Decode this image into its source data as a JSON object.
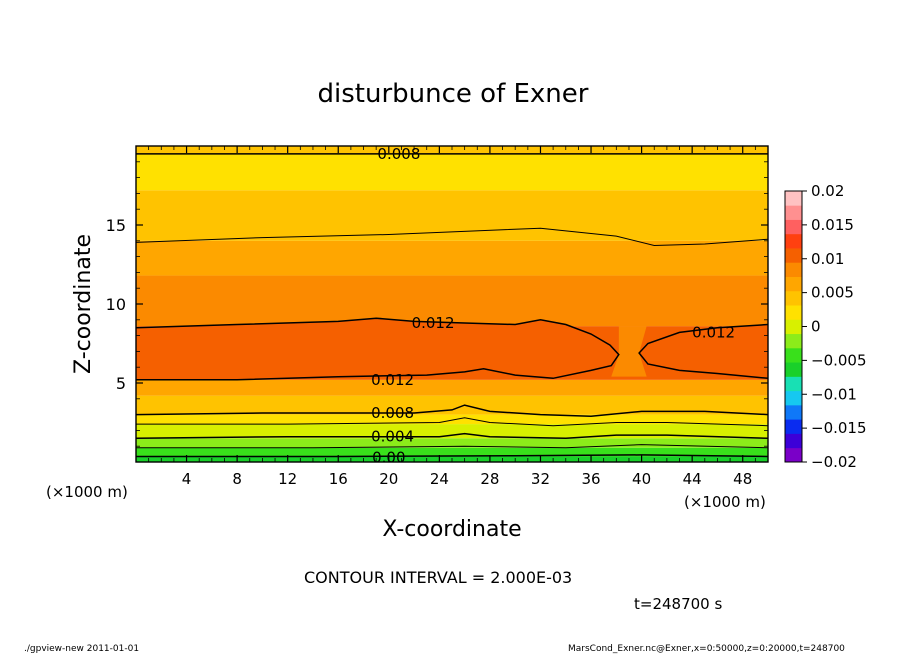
{
  "chart_data": {
    "type": "heatmap",
    "subtype": "filled-contour",
    "title": "disturbunce of Exner",
    "xlabel": "X-coordinate",
    "ylabel": "Z-coordinate",
    "x_unit_label": "(×1000 m)",
    "y_unit_label": "(×1000 m)",
    "xlim": [
      0,
      50
    ],
    "ylim": [
      0,
      20
    ],
    "x_ticks": [
      4,
      8,
      12,
      16,
      20,
      24,
      28,
      32,
      36,
      40,
      44,
      48
    ],
    "y_ticks": [
      5,
      10,
      15
    ],
    "color_levels": [
      -0.02,
      -0.015,
      -0.01,
      -0.005,
      0,
      0.005,
      0.01,
      0.015,
      0.02
    ],
    "colorbar_labels": [
      "0.02",
      "0.015",
      "0.01",
      "0.005",
      "0",
      "−0.005",
      "−0.01",
      "−0.015",
      "−0.02"
    ],
    "contour_interval_text": "CONTOUR INTERVAL = 2.000E-03",
    "contour_labels": [
      {
        "text": "0.008",
        "x": 20.8,
        "z": 19.5
      },
      {
        "text": "0.012",
        "x": 23.5,
        "z": 8.8
      },
      {
        "text": "0.012",
        "x": 45.7,
        "z": 8.2
      },
      {
        "text": "0.012",
        "x": 20.3,
        "z": 5.2
      },
      {
        "text": "0.008",
        "x": 20.3,
        "z": 3.1
      },
      {
        "text": "0.004",
        "x": 20.3,
        "z": 1.6
      },
      {
        "text": "0.00",
        "x": 20.0,
        "z": 0.3
      }
    ],
    "contour_lines": [
      {
        "level": 0.008,
        "points": [
          [
            0,
            19.5
          ],
          [
            10,
            19.5
          ],
          [
            25,
            19.5
          ],
          [
            40,
            19.5
          ],
          [
            50,
            19.5
          ]
        ]
      },
      {
        "level": 0.01,
        "points": [
          [
            0,
            13.9
          ],
          [
            10,
            14.2
          ],
          [
            20,
            14.4
          ],
          [
            32,
            14.8
          ],
          [
            38,
            14.3
          ],
          [
            41,
            13.7
          ],
          [
            45,
            13.8
          ],
          [
            50,
            14.1
          ]
        ]
      },
      {
        "level": 0.012,
        "points": [
          [
            0,
            8.5
          ],
          [
            8,
            8.7
          ],
          [
            16,
            8.9
          ],
          [
            19,
            9.1
          ],
          [
            22,
            8.9
          ],
          [
            26,
            8.8
          ],
          [
            30,
            8.7
          ],
          [
            32,
            9.0
          ],
          [
            34,
            8.7
          ],
          [
            36,
            8.1
          ],
          [
            37.5,
            7.4
          ],
          [
            38.2,
            6.8
          ],
          [
            37.6,
            6.1
          ],
          [
            36,
            5.8
          ],
          [
            33,
            5.3
          ],
          [
            30,
            5.5
          ],
          [
            27.5,
            5.9
          ],
          [
            26,
            5.7
          ],
          [
            23,
            5.5
          ],
          [
            16,
            5.4
          ],
          [
            8,
            5.2
          ],
          [
            0,
            5.2
          ]
        ]
      },
      {
        "level": 0.012,
        "points": [
          [
            50,
            8.7
          ],
          [
            46,
            8.5
          ],
          [
            43,
            8.2
          ],
          [
            40.5,
            7.5
          ],
          [
            39.8,
            6.9
          ],
          [
            40.5,
            6.2
          ],
          [
            43,
            5.8
          ],
          [
            46,
            5.6
          ],
          [
            50,
            5.3
          ]
        ]
      },
      {
        "level": 0.008,
        "points": [
          [
            0,
            3.0
          ],
          [
            10,
            3.1
          ],
          [
            22,
            3.1
          ],
          [
            25,
            3.3
          ],
          [
            26,
            3.6
          ],
          [
            28,
            3.2
          ],
          [
            32,
            3.0
          ],
          [
            36,
            2.9
          ],
          [
            40,
            3.2
          ],
          [
            45,
            3.2
          ],
          [
            50,
            3.0
          ]
        ]
      },
      {
        "level": 0.006,
        "points": [
          [
            0,
            2.4
          ],
          [
            12,
            2.4
          ],
          [
            24,
            2.5
          ],
          [
            26,
            2.8
          ],
          [
            28,
            2.5
          ],
          [
            33,
            2.3
          ],
          [
            38,
            2.5
          ],
          [
            42,
            2.5
          ],
          [
            50,
            2.3
          ]
        ]
      },
      {
        "level": 0.004,
        "points": [
          [
            0,
            1.5
          ],
          [
            12,
            1.6
          ],
          [
            24,
            1.6
          ],
          [
            26,
            1.8
          ],
          [
            28,
            1.6
          ],
          [
            34,
            1.5
          ],
          [
            38,
            1.7
          ],
          [
            42,
            1.7
          ],
          [
            50,
            1.5
          ]
        ]
      },
      {
        "level": 0.002,
        "points": [
          [
            0,
            0.9
          ],
          [
            14,
            0.9
          ],
          [
            26,
            1.0
          ],
          [
            34,
            0.9
          ],
          [
            40,
            1.1
          ],
          [
            50,
            0.9
          ]
        ]
      },
      {
        "level": 0.0,
        "points": [
          [
            0,
            0.35
          ],
          [
            16,
            0.35
          ],
          [
            30,
            0.4
          ],
          [
            40,
            0.45
          ],
          [
            50,
            0.35
          ]
        ]
      }
    ],
    "time_label": "t=248700 s"
  },
  "footer": {
    "left": "./gpview-new   2011-01-01",
    "right": "MarsCond_Exner.nc@Exner,x=0:50000,z=0:20000,t=248700"
  },
  "colors": {
    "band_neg": [
      "#7a00c8",
      "#3c00d8",
      "#0a2cf0",
      "#0f78f8",
      "#16c8f0",
      "#18e0b4"
    ],
    "band_pos": [
      "#19d02a",
      "#39e01b",
      "#8cec1a",
      "#d8f000",
      "#ffe100",
      "#ffc300",
      "#ffa600",
      "#fb8a00",
      "#f56000",
      "#ff4010",
      "#ff6060",
      "#ff9090",
      "#ffc2c2"
    ]
  }
}
